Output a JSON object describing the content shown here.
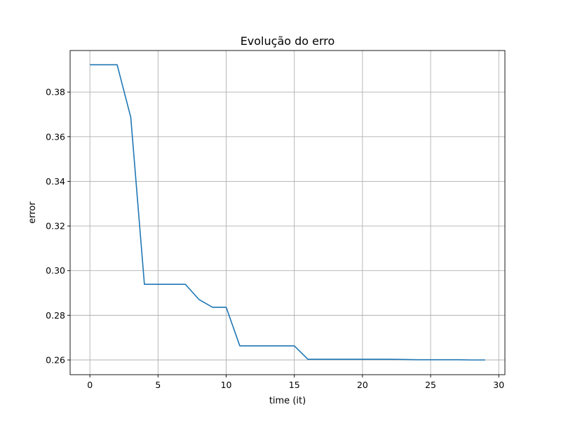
{
  "chart_data": {
    "type": "line",
    "title": "Evolução do erro",
    "xlabel": "time (it)",
    "ylabel": "error",
    "xlim": [
      -1.45,
      30.45
    ],
    "ylim": [
      0.2534,
      0.3986
    ],
    "xticks": [
      0,
      5,
      10,
      15,
      20,
      25,
      30
    ],
    "xtick_labels": [
      "0",
      "5",
      "10",
      "15",
      "20",
      "25",
      "30"
    ],
    "yticks": [
      0.26,
      0.28,
      0.3,
      0.32,
      0.34,
      0.36,
      0.38
    ],
    "ytick_labels": [
      "0.26",
      "0.28",
      "0.30",
      "0.32",
      "0.34",
      "0.36",
      "0.38"
    ],
    "grid": true,
    "series": [
      {
        "color": "#1f77b4",
        "x": [
          0,
          1,
          2,
          3,
          4,
          5,
          6,
          7,
          8,
          9,
          10,
          11,
          12,
          13,
          14,
          15,
          16,
          17,
          18,
          19,
          20,
          21,
          22,
          23,
          24,
          25,
          26,
          27,
          28,
          29
        ],
        "y": [
          0.3922,
          0.3922,
          0.3922,
          0.3687,
          0.2939,
          0.2939,
          0.2939,
          0.2939,
          0.2871,
          0.2836,
          0.2836,
          0.2663,
          0.2663,
          0.2663,
          0.2663,
          0.2663,
          0.2603,
          0.2603,
          0.2603,
          0.2603,
          0.2603,
          0.2603,
          0.2603,
          0.2602,
          0.2601,
          0.2601,
          0.2601,
          0.2601,
          0.26,
          0.26
        ]
      }
    ]
  }
}
